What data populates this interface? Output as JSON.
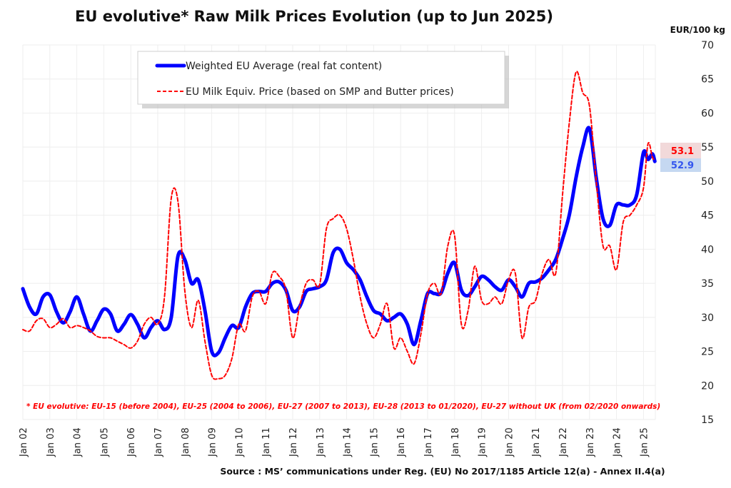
{
  "chart_data": {
    "type": "line",
    "title": "EU evolutive* Raw Milk Prices Evolution (up to Jun 2025)",
    "ylabel": "EUR/100 kg",
    "xlabel": "",
    "ylim": [
      15,
      70
    ],
    "yticks": [
      15,
      20,
      25,
      30,
      35,
      40,
      45,
      50,
      55,
      60,
      65,
      70
    ],
    "y_axis_side": "right",
    "x_tick_labels": [
      "Jan 02",
      "Jan 03",
      "Jan 04",
      "Jan 05",
      "Jan 06",
      "Jan 07",
      "Jan 08",
      "Jan 09",
      "Jan 10",
      "Jan 11",
      "Jan 12",
      "Jan 13",
      "Jan 14",
      "Jan 15",
      "Jan 16",
      "Jan 17",
      "Jan 18",
      "Jan 19",
      "Jan 20",
      "Jan 21",
      "Jan 22",
      "Jan 23",
      "Jan 24",
      "Jan 25"
    ],
    "x_start_year": 2002,
    "x_end_year": 2025.42,
    "grid": true,
    "legend_position": "top-left",
    "series": [
      {
        "name": "Weighted EU Average (real fat content)",
        "color": "#0000ff",
        "style": "solid",
        "x": [
          2002.0,
          2002.25,
          2002.5,
          2002.75,
          2003.0,
          2003.25,
          2003.5,
          2003.75,
          2004.0,
          2004.25,
          2004.5,
          2004.75,
          2005.0,
          2005.25,
          2005.5,
          2005.75,
          2006.0,
          2006.25,
          2006.5,
          2006.75,
          2007.0,
          2007.25,
          2007.5,
          2007.75,
          2008.0,
          2008.25,
          2008.5,
          2008.75,
          2009.0,
          2009.25,
          2009.5,
          2009.75,
          2010.0,
          2010.25,
          2010.5,
          2010.75,
          2011.0,
          2011.25,
          2011.5,
          2011.75,
          2012.0,
          2012.25,
          2012.5,
          2012.75,
          2013.0,
          2013.25,
          2013.5,
          2013.75,
          2014.0,
          2014.25,
          2014.5,
          2014.75,
          2015.0,
          2015.25,
          2015.5,
          2015.75,
          2016.0,
          2016.25,
          2016.5,
          2016.75,
          2017.0,
          2017.25,
          2017.5,
          2017.75,
          2018.0,
          2018.25,
          2018.5,
          2018.75,
          2019.0,
          2019.25,
          2019.5,
          2019.75,
          2020.0,
          2020.25,
          2020.5,
          2020.75,
          2021.0,
          2021.25,
          2021.5,
          2021.75,
          2022.0,
          2022.25,
          2022.5,
          2022.75,
          2023.0,
          2023.25,
          2023.5,
          2023.75,
          2024.0,
          2024.25,
          2024.5,
          2024.75,
          2025.0,
          2025.17,
          2025.33,
          2025.42
        ],
        "values": [
          34.2,
          31.5,
          30.5,
          33.0,
          33.3,
          30.8,
          29.2,
          30.8,
          33.0,
          30.5,
          28.0,
          29.5,
          31.2,
          30.5,
          28.0,
          29.0,
          30.4,
          29.0,
          27.0,
          28.5,
          29.5,
          28.2,
          30.0,
          39.0,
          38.5,
          35.0,
          35.5,
          31.0,
          25.0,
          24.8,
          27.0,
          28.8,
          28.5,
          31.5,
          33.5,
          33.8,
          33.8,
          35.0,
          35.2,
          34.0,
          31.0,
          31.5,
          33.8,
          34.2,
          34.5,
          35.5,
          39.5,
          40.0,
          38.0,
          37.0,
          35.5,
          33.0,
          31.0,
          30.5,
          29.5,
          30.0,
          30.5,
          29.0,
          26.0,
          29.5,
          33.5,
          33.5,
          33.6,
          36.5,
          38.0,
          34.0,
          33.2,
          34.5,
          36.0,
          35.5,
          34.5,
          34.0,
          35.5,
          34.5,
          33.0,
          35.0,
          35.2,
          35.8,
          37.0,
          38.5,
          41.5,
          45.0,
          50.5,
          55.0,
          57.7,
          50.5,
          44.5,
          43.5,
          46.5,
          46.5,
          46.5,
          48.0,
          54.2,
          53.2,
          54.0,
          52.9
        ]
      },
      {
        "name": "EU Milk Equiv. Price (based on SMP and Butter prices)",
        "color": "#ff0000",
        "style": "dashed",
        "x": [
          2002.0,
          2002.25,
          2002.5,
          2002.75,
          2003.0,
          2003.25,
          2003.5,
          2003.75,
          2004.0,
          2004.25,
          2004.5,
          2004.75,
          2005.0,
          2005.25,
          2005.5,
          2005.75,
          2006.0,
          2006.25,
          2006.5,
          2006.75,
          2007.0,
          2007.25,
          2007.5,
          2007.75,
          2008.0,
          2008.25,
          2008.5,
          2008.75,
          2009.0,
          2009.25,
          2009.5,
          2009.75,
          2010.0,
          2010.25,
          2010.5,
          2010.75,
          2011.0,
          2011.25,
          2011.5,
          2011.75,
          2012.0,
          2012.25,
          2012.5,
          2012.75,
          2013.0,
          2013.25,
          2013.5,
          2013.75,
          2014.0,
          2014.25,
          2014.5,
          2014.75,
          2015.0,
          2015.25,
          2015.5,
          2015.75,
          2016.0,
          2016.25,
          2016.5,
          2016.75,
          2017.0,
          2017.25,
          2017.5,
          2017.75,
          2018.0,
          2018.25,
          2018.5,
          2018.75,
          2019.0,
          2019.25,
          2019.5,
          2019.75,
          2020.0,
          2020.25,
          2020.5,
          2020.75,
          2021.0,
          2021.25,
          2021.5,
          2021.75,
          2022.0,
          2022.25,
          2022.5,
          2022.75,
          2023.0,
          2023.25,
          2023.5,
          2023.75,
          2024.0,
          2024.25,
          2024.5,
          2024.75,
          2025.0,
          2025.17,
          2025.33,
          2025.42
        ],
        "values": [
          28.2,
          28.0,
          29.5,
          29.8,
          28.5,
          29.0,
          29.8,
          28.5,
          28.8,
          28.5,
          28.0,
          27.2,
          27.0,
          27.0,
          26.5,
          26.0,
          25.5,
          26.5,
          29.0,
          30.0,
          29.0,
          33.0,
          47.5,
          47.0,
          34.0,
          28.5,
          32.5,
          26.5,
          21.5,
          21.0,
          21.5,
          24.0,
          29.0,
          28.0,
          33.0,
          33.8,
          32.0,
          36.5,
          36.0,
          34.0,
          27.0,
          31.5,
          35.0,
          35.5,
          34.8,
          43.0,
          44.5,
          45.0,
          43.0,
          38.5,
          33.0,
          29.0,
          27.0,
          29.0,
          32.0,
          25.5,
          27.0,
          25.0,
          23.2,
          27.5,
          33.5,
          35.0,
          33.5,
          40.5,
          42.0,
          29.0,
          31.0,
          37.5,
          32.5,
          32.0,
          33.0,
          32.0,
          35.5,
          36.5,
          27.0,
          31.5,
          32.5,
          36.5,
          38.5,
          36.5,
          48.0,
          58.5,
          66.0,
          63.0,
          61.0,
          50.0,
          40.5,
          40.5,
          37.0,
          44.0,
          45.0,
          46.5,
          49.0,
          55.5,
          53.5,
          53.1
        ]
      }
    ],
    "last_values": {
      "red": "53.1",
      "blue": "52.9",
      "red_bg": "#f2d9da",
      "blue_bg": "#c5d8f1"
    },
    "annotations": [
      "* EU evolutive: EU-15 (before 2004), EU-25 (2004 to 2006), EU-27 (2007 to 2013), EU-28 (2013 to 01/2020), EU-27 without UK (from 02/2020 onwards)"
    ],
    "source": "Source : MS’ communications under Reg. (EU) No 2017/1185 Article 12(a) - Annex II.4(a)"
  }
}
